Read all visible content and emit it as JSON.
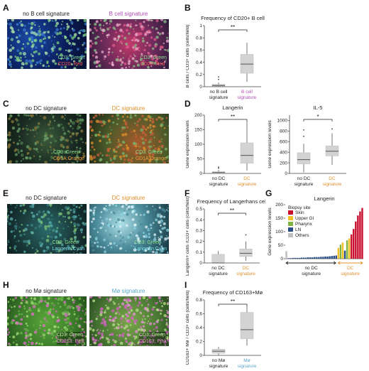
{
  "panels": {
    "A": {
      "label": "A",
      "left_caption": "no B cell signature",
      "right_caption": "B cell signature",
      "right_caption_color": "#b04fb5",
      "left_stain": [
        "CD3: Green",
        "CD20: Red"
      ],
      "right_stain": [
        "CD3: Green",
        "CD20: Red"
      ]
    },
    "C": {
      "label": "C",
      "left_caption": "no DC signature",
      "right_caption": "DC signature",
      "right_caption_color": "#e0902a",
      "left_stain": [
        "CD3: Green",
        "CD1A:Orange"
      ],
      "right_stain": [
        "CD3: Green",
        "CD1A:Orange"
      ]
    },
    "E": {
      "label": "E",
      "left_caption": "no DC signature",
      "right_caption": "DC signature",
      "right_caption_color": "#e0902a",
      "left_stain": [
        "CD3: Green",
        "Langerin:Cyan"
      ],
      "right_stain": [
        "CD3: Green",
        "Langerin:Cyan"
      ]
    },
    "H": {
      "label": "H",
      "left_caption": "no Mø signature",
      "right_caption": "Mø signature",
      "right_caption_color": "#5aa8c8",
      "left_stain": [
        "CD3: Green",
        "CD163: Pink"
      ],
      "right_stain": [
        "CD3: Green",
        "CD163: Pink"
      ]
    }
  },
  "chart_data": [
    {
      "id": "B",
      "type": "box",
      "title": "Frequency of CD20+ B cell",
      "ylabel": "B cells / CD3+ cells (cells/field)",
      "ylim": [
        0,
        1.0
      ],
      "yticks": [
        0.0,
        0.2,
        0.4,
        0.6,
        0.8,
        1.0
      ],
      "categories": [
        "no B cell\nsignature",
        "B cell\nsignature"
      ],
      "category_colors": [
        "#222222",
        "#b04fb5"
      ],
      "boxes": [
        {
          "min": 0.0,
          "q1": 0.01,
          "median": 0.02,
          "q3": 0.04,
          "max": 0.07,
          "outliers": [
            0.12,
            0.16
          ]
        },
        {
          "min": 0.08,
          "q1": 0.22,
          "median": 0.37,
          "q3": 0.53,
          "max": 0.72,
          "outliers": []
        }
      ],
      "significance": "**"
    },
    {
      "id": "D1",
      "type": "box",
      "title": "Langerin",
      "ylabel": "Gene expression levels",
      "ylim": [
        0,
        200
      ],
      "yticks": [
        0,
        50,
        100,
        150,
        200
      ],
      "categories": [
        "no DC\nsignature",
        "DC\nsignature"
      ],
      "category_colors": [
        "#222222",
        "#e0902a"
      ],
      "boxes": [
        {
          "min": 0,
          "q1": 1,
          "median": 3,
          "q3": 6,
          "max": 12,
          "outliers": [
            18,
            22
          ]
        },
        {
          "min": 10,
          "q1": 35,
          "median": 62,
          "q3": 105,
          "max": 180,
          "outliers": []
        }
      ],
      "significance": "**"
    },
    {
      "id": "D2",
      "type": "box",
      "title": "IL-5",
      "ylabel": "Gene expression levels",
      "ylim": [
        0,
        1100
      ],
      "yticks": [
        0,
        200,
        400,
        600,
        800,
        1000
      ],
      "categories": [
        "no DC\nsignature",
        "DC\nsignature"
      ],
      "category_colors": [
        "#222222",
        "#e0902a"
      ],
      "boxes": [
        {
          "min": 20,
          "q1": 180,
          "median": 260,
          "q3": 390,
          "max": 560,
          "outliers": [
            700,
            820
          ]
        },
        {
          "min": 160,
          "q1": 330,
          "median": 420,
          "q3": 520,
          "max": 760,
          "outliers": [
            840
          ]
        }
      ],
      "significance": "*"
    },
    {
      "id": "F",
      "type": "box",
      "title": "Frequency of Langerhans cell",
      "ylabel": "Langerin+ cells /CD3+ cells (cells/field)",
      "ylim": [
        0,
        0.5
      ],
      "yticks": [
        0.0,
        0.1,
        0.2,
        0.3,
        0.4,
        0.5
      ],
      "categories": [
        "no DC\nsignature",
        "DC\nsignature"
      ],
      "category_colors": [
        "#222222",
        "#e0902a"
      ],
      "boxes": [
        {
          "min": 0.0,
          "q1": 0.0,
          "median": 0.0,
          "q3": 0.08,
          "max": 0.11,
          "outliers": []
        },
        {
          "min": 0.02,
          "q1": 0.06,
          "median": 0.09,
          "q3": 0.13,
          "max": 0.2,
          "outliers": [
            0.26
          ]
        }
      ],
      "significance": "**"
    },
    {
      "id": "G",
      "type": "bar",
      "title": "Langerin",
      "ylabel": "Gene expression levels",
      "ylim": [
        0,
        200
      ],
      "yticks": [
        0,
        50,
        100,
        150,
        200
      ],
      "legend_title": "Biopsy site",
      "legend": [
        {
          "name": "Skin",
          "color": "#c8102e"
        },
        {
          "name": "Upper GI",
          "color": "#f2c029"
        },
        {
          "name": "Pharynx",
          "color": "#7fb241"
        },
        {
          "name": "LN",
          "color": "#2a4f86"
        },
        {
          "name": "Others",
          "color": "#bfbfbf"
        }
      ],
      "group_labels": [
        "no DC\nsignature",
        "DC\nsignature"
      ],
      "group_colors": [
        "#222222",
        "#e0902a"
      ],
      "no_dc_values": [
        28,
        2,
        2,
        3,
        3,
        3,
        3,
        4,
        4,
        4,
        5,
        5,
        5,
        6,
        6,
        6,
        7,
        7,
        8,
        8,
        9,
        10,
        11,
        12
      ],
      "no_dc_sites": [
        "Others",
        "LN",
        "LN",
        "LN",
        "LN",
        "LN",
        "LN",
        "LN",
        "LN",
        "LN",
        "LN",
        "LN",
        "LN",
        "LN",
        "LN",
        "LN",
        "LN",
        "LN",
        "LN",
        "LN",
        "LN",
        "LN",
        "LN",
        "LN"
      ],
      "dc_values": [
        40,
        52,
        60,
        30,
        68,
        75,
        90,
        110,
        138,
        160,
        175,
        188
      ],
      "dc_sites": [
        "Upper GI",
        "Pharynx",
        "Upper GI",
        "LN",
        "Pharynx",
        "Upper GI",
        "Skin",
        "Skin",
        "Skin",
        "Skin",
        "Skin",
        "Skin"
      ]
    },
    {
      "id": "I",
      "type": "box",
      "title": "Frequency of CD163+Mø",
      "ylabel": "CD163+ Mø / CD3+ cells (cells/field)",
      "ylim": [
        0,
        0.8
      ],
      "yticks": [
        0.0,
        0.2,
        0.4,
        0.6,
        0.8
      ],
      "categories": [
        "no Mø\nsignature",
        "Mø\nsignature"
      ],
      "category_colors": [
        "#222222",
        "#5aa8c8"
      ],
      "boxes": [
        {
          "min": 0.0,
          "q1": 0.03,
          "median": 0.06,
          "q3": 0.09,
          "max": 0.12,
          "outliers": []
        },
        {
          "min": 0.14,
          "q1": 0.24,
          "median": 0.37,
          "q3": 0.62,
          "max": 0.72,
          "outliers": []
        }
      ],
      "significance": "**"
    }
  ]
}
